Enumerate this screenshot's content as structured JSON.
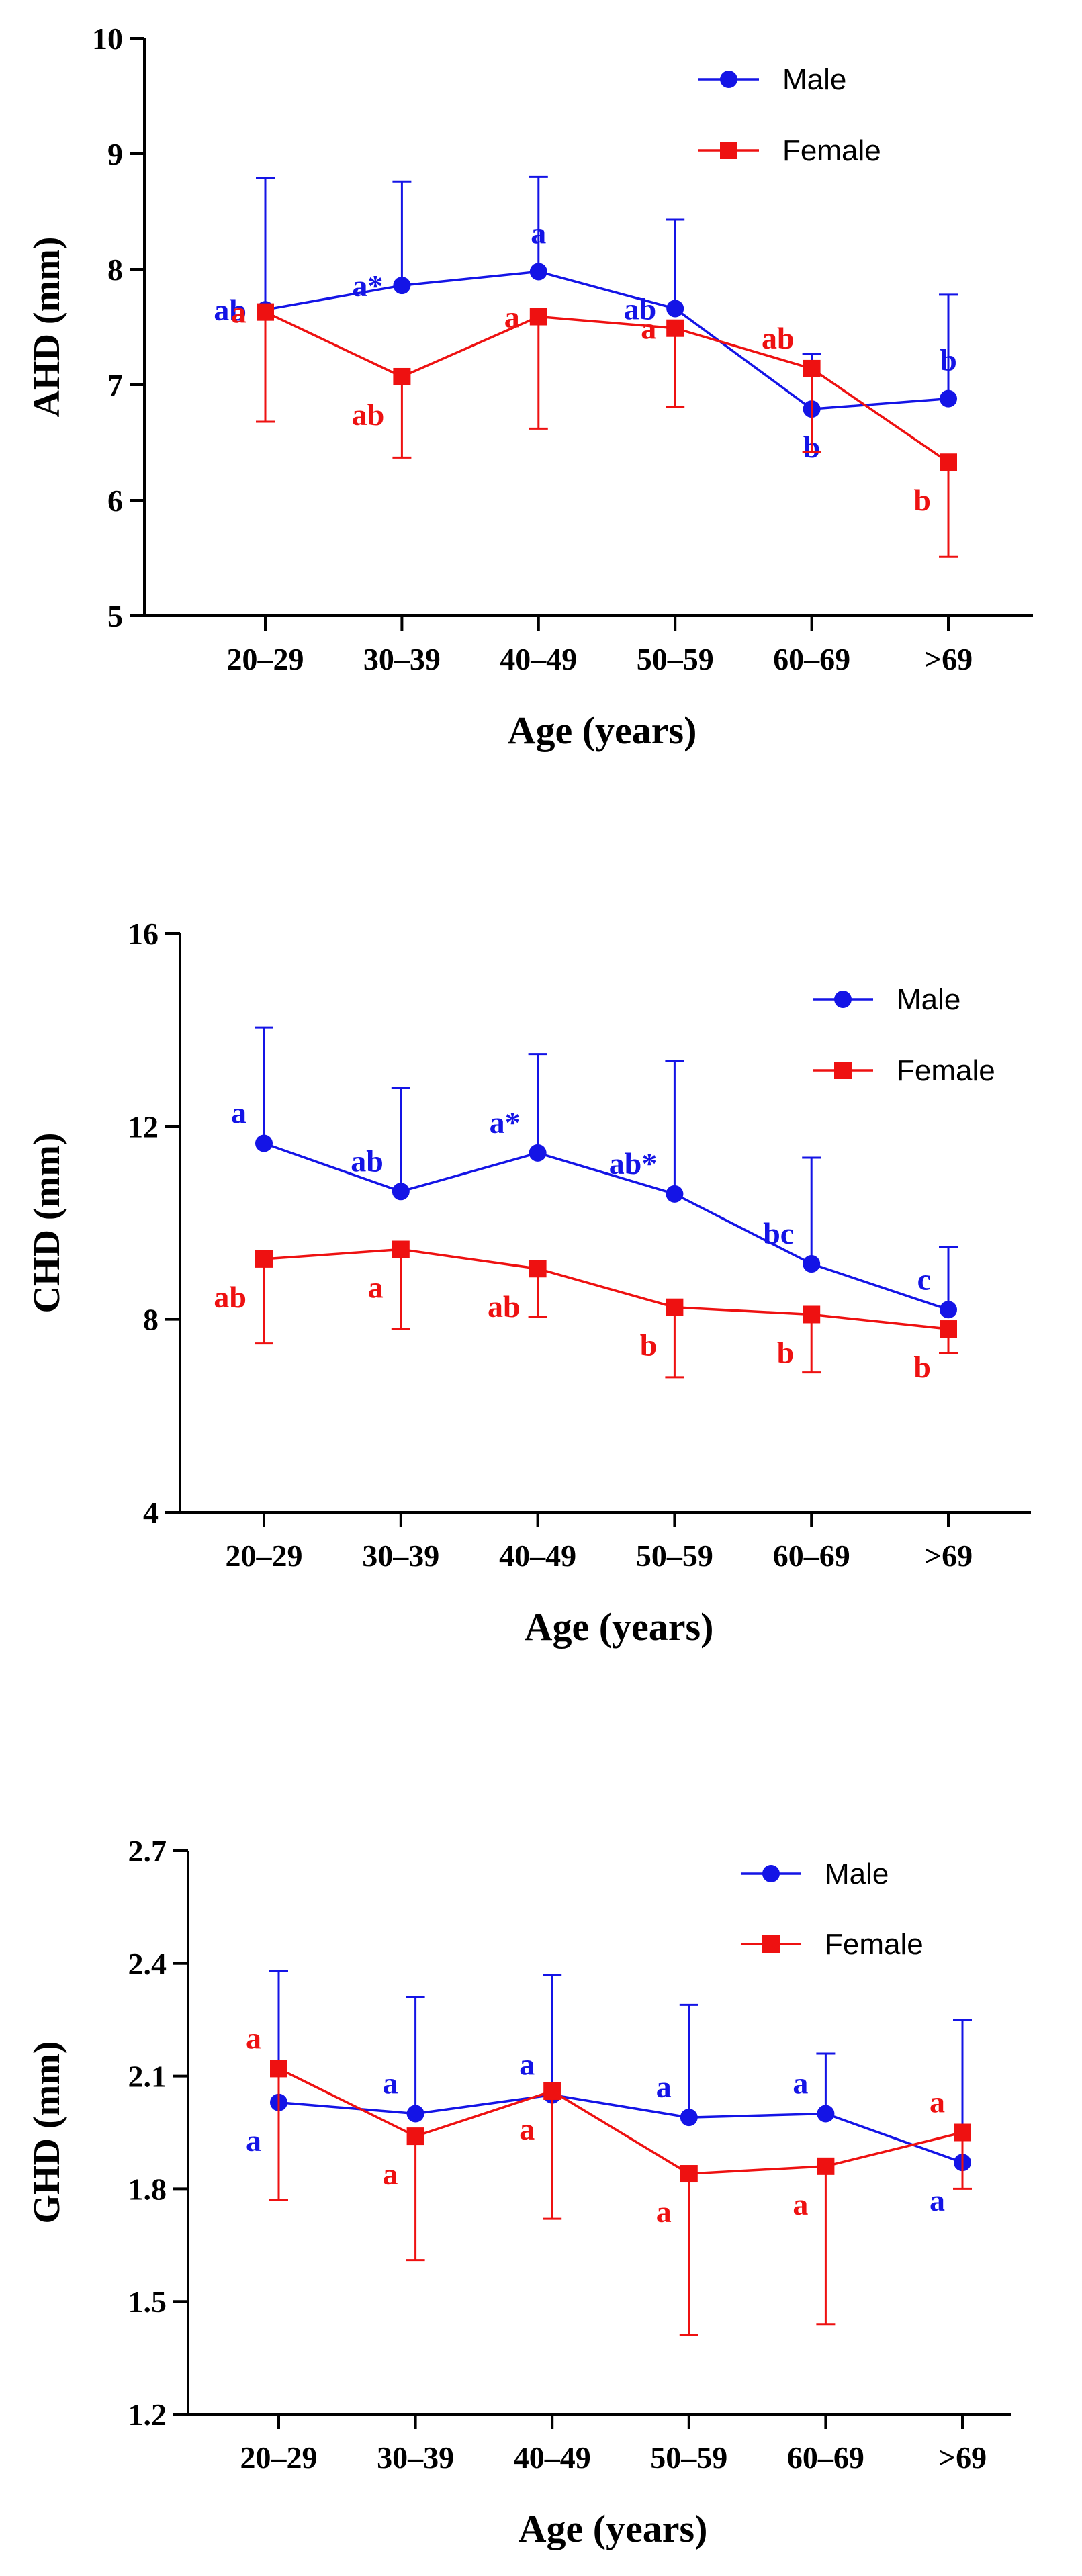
{
  "colors": {
    "male": "#1414e6",
    "female": "#ee1111",
    "axis": "#000000"
  },
  "chart_data": [
    {
      "type": "line",
      "ylabel": "AHD (mm)",
      "xlabel": "Age (years)",
      "ylim": [
        5,
        10
      ],
      "yticks": [
        "5",
        "6",
        "7",
        "8",
        "9",
        "10"
      ],
      "categories": [
        "20–29",
        "30–39",
        "40–49",
        "50–59",
        "60–69",
        ">69"
      ],
      "legend_position": "top-right",
      "series": [
        {
          "name": "Male",
          "marker": "circle",
          "values": [
            7.65,
            7.86,
            7.98,
            7.66,
            6.79,
            6.88
          ],
          "error_plus": [
            1.14,
            0.9,
            0.82,
            0.77,
            0.48,
            0.9
          ],
          "error_minus": [
            0,
            0,
            0,
            0,
            0,
            0
          ],
          "letters": [
            "ab",
            "a*",
            "a",
            "ab",
            "b",
            "b"
          ],
          "letter_placement": [
            "left",
            "left",
            "above",
            "left",
            "below",
            "above"
          ]
        },
        {
          "name": "Female",
          "marker": "square",
          "values": [
            7.63,
            7.07,
            7.59,
            7.49,
            7.14,
            6.33
          ],
          "error_plus": [
            0,
            0,
            0,
            0,
            0,
            0
          ],
          "error_minus": [
            0.95,
            0.7,
            0.97,
            0.68,
            0.72,
            0.82
          ],
          "letters": [
            "a",
            "ab",
            "a",
            "a",
            "ab",
            "b"
          ],
          "letter_placement": [
            "left",
            "below-left",
            "left",
            "left",
            "above-left",
            "below-left"
          ]
        }
      ]
    },
    {
      "type": "line",
      "ylabel": "CHD (mm)",
      "xlabel": "Age (years)",
      "ylim": [
        4,
        16
      ],
      "yticks": [
        "4",
        "8",
        "12",
        "16"
      ],
      "categories": [
        "20–29",
        "30–39",
        "40–49",
        "50–59",
        "60–69",
        ">69"
      ],
      "legend_position": "top-right",
      "series": [
        {
          "name": "Male",
          "marker": "circle",
          "values": [
            11.65,
            10.65,
            11.45,
            10.6,
            9.15,
            8.2
          ],
          "error_plus": [
            2.4,
            2.15,
            2.05,
            2.75,
            2.2,
            1.3
          ],
          "error_minus": [
            0,
            0,
            0,
            0,
            0,
            0
          ],
          "letters": [
            "a",
            "ab",
            "a*",
            "ab*",
            "bc",
            "c"
          ],
          "letter_placement": [
            "above-left",
            "above-left",
            "above-left",
            "above-left",
            "above-left",
            "above-left"
          ]
        },
        {
          "name": "Female",
          "marker": "square",
          "values": [
            9.25,
            9.45,
            9.05,
            8.25,
            8.1,
            7.8
          ],
          "error_plus": [
            0,
            0,
            0,
            0,
            0,
            0
          ],
          "error_minus": [
            1.75,
            1.65,
            1.0,
            1.45,
            1.2,
            0.5
          ],
          "letters": [
            "ab",
            "a",
            "ab",
            "b",
            "b",
            "b"
          ],
          "letter_placement": [
            "below-left",
            "below-left",
            "below-left",
            "below-left",
            "below-left",
            "below-left"
          ]
        }
      ]
    },
    {
      "type": "line",
      "ylabel": "GHD (mm)",
      "xlabel": "Age (years)",
      "ylim": [
        1.2,
        2.7
      ],
      "yticks": [
        "1.2",
        "1.5",
        "1.8",
        "2.1",
        "2.4",
        "2.7"
      ],
      "categories": [
        "20–29",
        "30–39",
        "40–49",
        "50–59",
        "60–69",
        ">69"
      ],
      "legend_position": "top-right",
      "series": [
        {
          "name": "Male",
          "marker": "circle",
          "values": [
            2.03,
            2.0,
            2.05,
            1.99,
            2.0,
            1.87
          ],
          "error_plus": [
            0.35,
            0.31,
            0.32,
            0.3,
            0.16,
            0.38
          ],
          "error_minus": [
            0,
            0,
            0,
            0,
            0,
            0
          ],
          "letters": [
            "a",
            "a",
            "a",
            "a",
            "a",
            "a"
          ],
          "letter_placement": [
            "below-left",
            "above-left",
            "above-left",
            "above-left",
            "above-left",
            "below-left"
          ]
        },
        {
          "name": "Female",
          "marker": "square",
          "values": [
            2.12,
            1.94,
            2.06,
            1.84,
            1.86,
            1.95
          ],
          "error_plus": [
            0,
            0,
            0,
            0,
            0,
            0
          ],
          "error_minus": [
            0.35,
            0.33,
            0.34,
            0.43,
            0.42,
            0.15
          ],
          "letters": [
            "a",
            "a",
            "a",
            "a",
            "a",
            "a"
          ],
          "letter_placement": [
            "above-left",
            "below-left",
            "below-left",
            "below-left",
            "below-left",
            "above-left"
          ]
        }
      ]
    }
  ]
}
